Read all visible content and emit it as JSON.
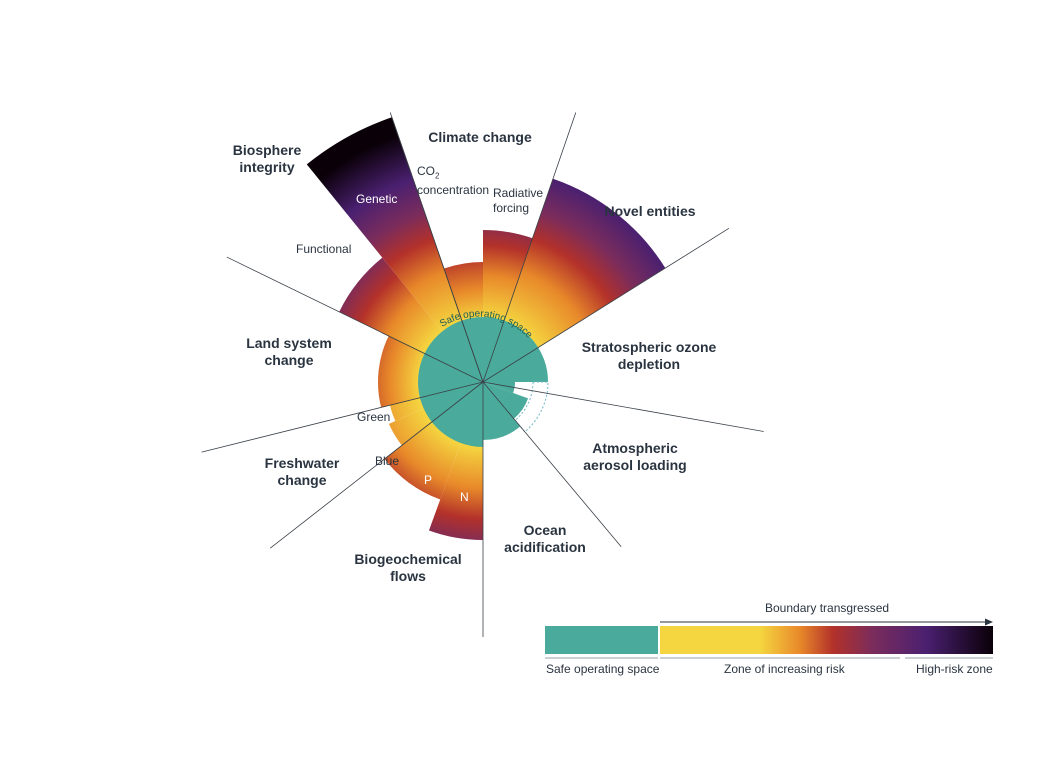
{
  "chart_data": {
    "type": "radial-boundary-diagram",
    "center_label": "Safe operating space",
    "boundaries": [
      {
        "name": "Climate change",
        "sub": [
          "CO2 concentration",
          "Radiative forcing"
        ],
        "status": "transgressed"
      },
      {
        "name": "Novel entities",
        "status": "high-risk"
      },
      {
        "name": "Stratospheric ozone depletion",
        "status": "safe"
      },
      {
        "name": "Atmospheric aerosol loading",
        "status": "safe"
      },
      {
        "name": "Ocean acidification",
        "status": "safe"
      },
      {
        "name": "Biogeochemical flows",
        "sub": [
          "P",
          "N"
        ],
        "status": "high-risk"
      },
      {
        "name": "Freshwater change",
        "sub": [
          "Green",
          "Blue"
        ],
        "status": "transgressed"
      },
      {
        "name": "Land system change",
        "status": "transgressed"
      },
      {
        "name": "Biosphere integrity",
        "sub": [
          "Genetic",
          "Functional"
        ],
        "status": "high-risk"
      }
    ]
  },
  "labels": {
    "climate": "Climate change",
    "co2_a": "CO",
    "co2_sub": "2",
    "co2_b": "concentration",
    "radiative_1": "Radiative",
    "radiative_2": "forcing",
    "novel": "Novel entities",
    "ozone_1": "Stratospheric ozone",
    "ozone_2": "depletion",
    "aerosol_1": "Atmospheric",
    "aerosol_2": "aerosol loading",
    "ocean_1": "Ocean",
    "ocean_2": "acidification",
    "biogeo_1": "Biogeochemical",
    "biogeo_2": "flows",
    "fresh_1": "Freshwater",
    "fresh_2": "change",
    "land_1": "Land system",
    "land_2": "change",
    "bio_1": "Biosphere",
    "bio_2": "integrity",
    "genetic": "Genetic",
    "functional": "Functional",
    "green": "Green",
    "blue": "Blue",
    "p": "P",
    "n": "N",
    "safe_space": "Safe operating space"
  },
  "legend": {
    "arrow_label": "Boundary transgressed",
    "safe": "Safe operating space",
    "zone": "Zone of increasing risk",
    "high": "High-risk zone"
  },
  "colors": {
    "safe": "#4aab9c",
    "yellow": "#f5d640",
    "orange": "#e8892a",
    "red": "#b3312a",
    "purple": "#4a2070",
    "black": "#0a0008"
  }
}
